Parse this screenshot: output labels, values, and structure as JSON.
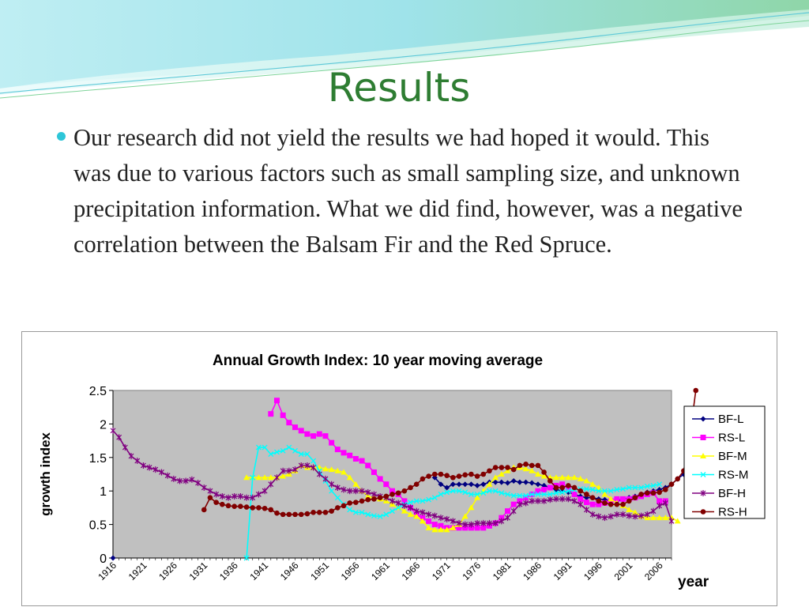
{
  "slide": {
    "title": "Results",
    "bullet": "Our research did not yield the results we had hoped it would. This was due to various factors such as small sampling size, and unknown precipitation information. What we did find, however, was a negative correlation between the Balsam Fir and the Red Spruce."
  },
  "chart_data": {
    "type": "line",
    "title": "Annual Growth Index: 10 year moving average",
    "xlabel": "year",
    "ylabel": "growth index",
    "xlim": [
      1916,
      2008
    ],
    "ylim": [
      0,
      2.5
    ],
    "yticks": [
      "0",
      "0.5",
      "1",
      "1.5",
      "2",
      "2.5"
    ],
    "xticks": [
      "1916",
      "1921",
      "1926",
      "1931",
      "1936",
      "1941",
      "1946",
      "1951",
      "1956",
      "1961",
      "1966",
      "1971",
      "1976",
      "1981",
      "1986",
      "1991",
      "1996",
      "2001",
      "2006"
    ],
    "grid": false,
    "plot_background": "#c0c0c0",
    "legend_position": "right",
    "series": [
      {
        "name": "BF-L",
        "color": "#000080",
        "marker": "diamond",
        "start": 1916,
        "values": [
          0,
          null,
          null,
          null,
          null,
          null,
          null,
          null,
          null,
          null,
          null,
          null,
          null,
          null,
          null,
          null,
          null,
          null,
          null,
          null,
          null,
          null,
          null,
          null,
          null,
          null,
          null,
          null,
          null,
          null,
          null,
          null,
          null,
          null,
          null,
          null,
          null,
          null,
          null,
          null,
          null,
          null,
          null,
          null,
          null,
          null,
          null,
          null,
          null,
          null,
          null,
          null,
          null,
          1.2,
          1.1,
          1.05,
          1.1,
          1.1,
          1.1,
          1.1,
          1.08,
          1.1,
          1.13,
          1.13,
          1.13,
          1.12,
          1.15,
          1.13,
          1.13,
          1.12,
          1.1,
          1.08,
          1.05,
          1.02,
          1.0,
          0.98,
          0.95,
          0.92,
          0.9,
          0.9,
          0.88,
          0.87,
          0.85,
          0.85,
          0.87,
          0.9,
          0.92,
          0.95,
          0.98,
          1.0,
          1.02,
          1.05,
          1.1,
          1.18,
          1.25
        ]
      },
      {
        "name": "RS-L",
        "color": "#ff00ff",
        "marker": "square",
        "start": 1942,
        "values": [
          2.15,
          2.35,
          2.13,
          2.02,
          1.95,
          1.9,
          1.85,
          1.82,
          1.85,
          1.82,
          1.72,
          1.62,
          1.57,
          1.53,
          1.48,
          1.45,
          1.38,
          1.28,
          1.18,
          1.1,
          1.0,
          0.95,
          0.85,
          0.75,
          0.65,
          0.6,
          0.55,
          0.5,
          0.48,
          0.45,
          0.45,
          0.45,
          0.45,
          0.45,
          0.45,
          0.45,
          0.48,
          0.52,
          0.6,
          0.7,
          0.8,
          0.85,
          0.9,
          0.95,
          1.0,
          1.02,
          1.05,
          1.08,
          1.1,
          1.05,
          0.95,
          0.88,
          0.83,
          0.8,
          0.8,
          0.82,
          0.85,
          0.88,
          0.88,
          0.88,
          0.9,
          0.92,
          0.95,
          0.97,
          0.85,
          0.85
        ]
      },
      {
        "name": "BF-M",
        "color": "#ffff00",
        "marker": "triangle",
        "start": 1938,
        "values": [
          1.2,
          1.2,
          1.2,
          1.2,
          1.2,
          1.2,
          1.22,
          1.25,
          1.3,
          1.38,
          1.35,
          1.35,
          1.35,
          1.33,
          1.32,
          1.3,
          1.28,
          1.2,
          1.1,
          1.0,
          0.92,
          0.9,
          0.88,
          0.85,
          0.8,
          0.75,
          0.7,
          0.65,
          0.62,
          0.55,
          0.45,
          0.42,
          0.42,
          0.42,
          0.45,
          0.5,
          0.62,
          0.75,
          0.9,
          1.0,
          1.1,
          1.2,
          1.25,
          1.3,
          1.35,
          1.35,
          1.33,
          1.3,
          1.25,
          1.22,
          1.2,
          1.2,
          1.2,
          1.2,
          1.2,
          1.18,
          1.15,
          1.1,
          1.05,
          0.95,
          0.88,
          0.82,
          0.78,
          0.72,
          0.68,
          0.62,
          0.6,
          0.6,
          0.6,
          0.6,
          0.6,
          0.55
        ]
      },
      {
        "name": "RS-M",
        "color": "#00ffff",
        "marker": "x",
        "start": 1938,
        "values": [
          0,
          1.2,
          1.65,
          1.65,
          1.55,
          1.58,
          1.6,
          1.65,
          1.6,
          1.55,
          1.55,
          1.45,
          1.3,
          1.15,
          1.0,
          0.9,
          0.8,
          0.72,
          0.68,
          0.68,
          0.65,
          0.63,
          0.62,
          0.65,
          0.7,
          0.75,
          0.8,
          0.83,
          0.85,
          0.85,
          0.87,
          0.9,
          0.95,
          0.98,
          1.0,
          1.0,
          0.98,
          0.95,
          0.95,
          0.97,
          1.0,
          1.0,
          0.97,
          0.95,
          0.93,
          0.93,
          0.93,
          0.95,
          0.95,
          0.95,
          0.95,
          0.97,
          0.98,
          1.0,
          1.02,
          1.03,
          1.03,
          1.02,
          1.0,
          1.0,
          1.0,
          1.02,
          1.03,
          1.05,
          1.05,
          1.05,
          1.07,
          1.08,
          1.1
        ]
      },
      {
        "name": "BF-H",
        "color": "#800080",
        "marker": "star",
        "start": 1916,
        "values": [
          1.9,
          1.8,
          1.65,
          1.52,
          1.45,
          1.38,
          1.35,
          1.32,
          1.28,
          1.23,
          1.18,
          1.15,
          1.15,
          1.17,
          1.12,
          1.05,
          1.0,
          0.95,
          0.92,
          0.9,
          0.92,
          0.92,
          0.9,
          0.9,
          0.95,
          1.0,
          1.1,
          1.2,
          1.3,
          1.3,
          1.32,
          1.38,
          1.38,
          1.35,
          1.25,
          1.18,
          1.1,
          1.05,
          1.02,
          1.0,
          1.0,
          1.0,
          0.98,
          0.95,
          0.92,
          0.9,
          0.85,
          0.82,
          0.78,
          0.75,
          0.7,
          0.68,
          0.65,
          0.63,
          0.6,
          0.58,
          0.55,
          0.52,
          0.5,
          0.5,
          0.52,
          0.52,
          0.52,
          0.52,
          0.55,
          0.6,
          0.7,
          0.8,
          0.82,
          0.85,
          0.85,
          0.85,
          0.87,
          0.88,
          0.88,
          0.88,
          0.85,
          0.8,
          0.72,
          0.65,
          0.62,
          0.6,
          0.62,
          0.65,
          0.65,
          0.63,
          0.62,
          0.63,
          0.65,
          0.7,
          0.78,
          0.82,
          0.55
        ]
      },
      {
        "name": "RS-H",
        "color": "#800000",
        "marker": "circle",
        "start": 1931,
        "values": [
          0.72,
          0.9,
          0.83,
          0.8,
          0.78,
          0.77,
          0.77,
          0.76,
          0.75,
          0.75,
          0.74,
          0.72,
          0.67,
          0.65,
          0.65,
          0.65,
          0.65,
          0.66,
          0.68,
          0.68,
          0.68,
          0.7,
          0.75,
          0.78,
          0.82,
          0.83,
          0.85,
          0.87,
          0.88,
          0.9,
          0.92,
          0.95,
          0.97,
          1.0,
          1.05,
          1.1,
          1.18,
          1.22,
          1.25,
          1.25,
          1.23,
          1.2,
          1.22,
          1.24,
          1.25,
          1.22,
          1.25,
          1.3,
          1.35,
          1.35,
          1.35,
          1.32,
          1.38,
          1.4,
          1.38,
          1.38,
          1.28,
          1.15,
          1.05,
          1.05,
          1.08,
          1.05,
          1.0,
          0.95,
          0.9,
          0.85,
          0.82,
          0.8,
          0.8,
          0.8,
          0.85,
          0.9,
          0.95,
          0.97,
          0.97,
          0.98,
          1.02,
          1.1,
          1.18,
          1.3,
          1.8,
          2.5
        ]
      }
    ]
  }
}
